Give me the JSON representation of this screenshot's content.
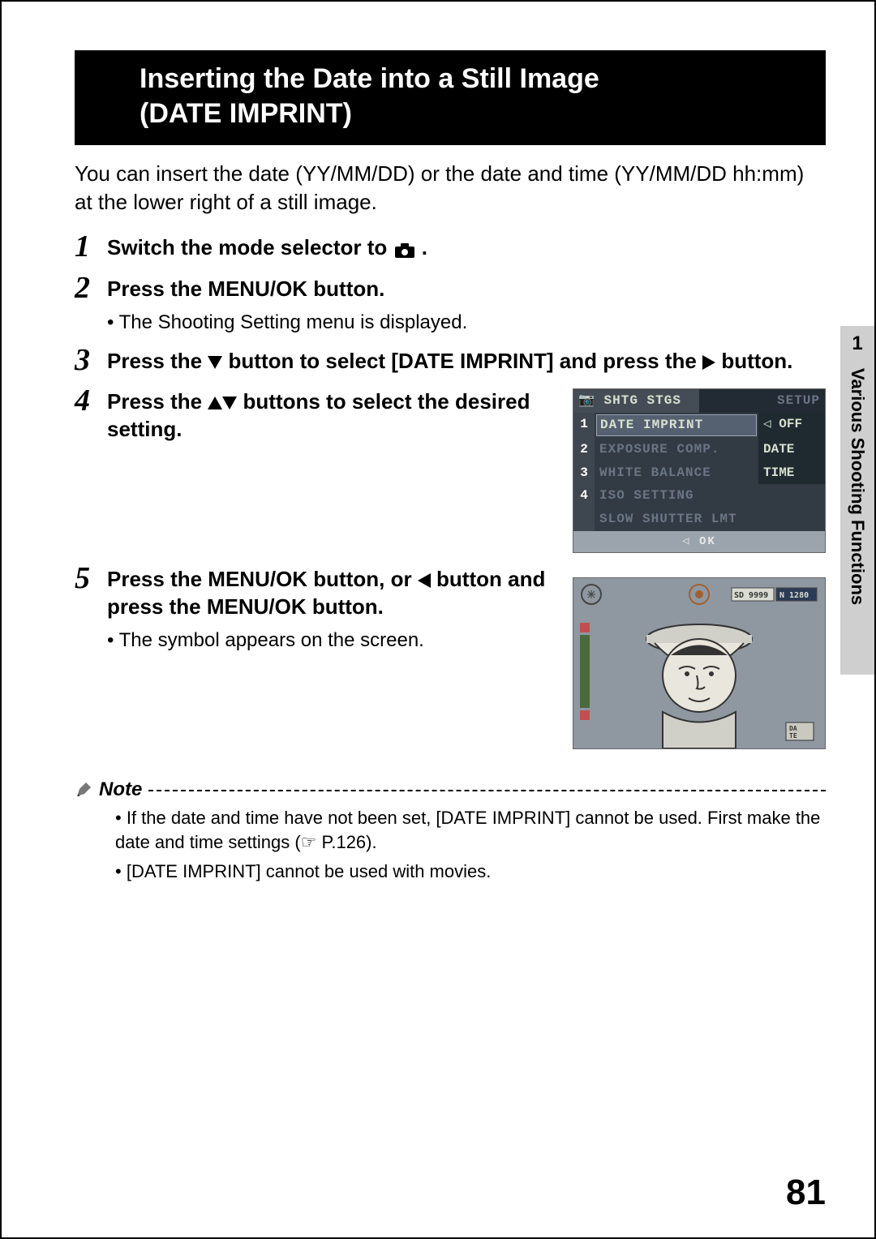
{
  "title_line1": "Inserting the Date into a Still Image",
  "title_line2": "(DATE IMPRINT)",
  "intro": "You can insert the date (YY/MM/DD) or the date and time (YY/MM/DD hh:mm) at the lower right of a still image.",
  "steps": {
    "s1": {
      "num": "1",
      "text_a": "Switch the mode selector to ",
      "text_b": "."
    },
    "s2": {
      "num": "2",
      "text": "Press the MENU/OK button.",
      "sub": "The Shooting Setting menu is displayed."
    },
    "s3": {
      "num": "3",
      "text_a": "Press the ",
      "text_b": " button to select [DATE IMPRINT] and press the ",
      "text_c": " button."
    },
    "s4": {
      "num": "4",
      "text_a": "Press the ",
      "text_b": " buttons to select the desired setting."
    },
    "s5": {
      "num": "5",
      "text_a": "Press the MENU/OK button, or ",
      "text_b": " button and press the MENU/OK button.",
      "sub": "The symbol appears on the screen."
    }
  },
  "lcd": {
    "tab_active": "SHTG STGS",
    "tab_inactive": "SETUP",
    "rows": [
      {
        "n": "1",
        "label": "DATE IMPRINT",
        "val": "OFF",
        "highlight": true
      },
      {
        "n": "2",
        "label": "EXPOSURE COMP.",
        "val": "DATE"
      },
      {
        "n": "3",
        "label": "WHITE BALANCE",
        "val": "TIME"
      },
      {
        "n": "4",
        "label": "ISO SETTING",
        "val": ""
      },
      {
        "n": "",
        "label": "SLOW SHUTTER LMT",
        "val": ""
      }
    ],
    "footer": "◁ OK"
  },
  "screen2_overlay": {
    "sd": "SD 9999",
    "n": "N 1280",
    "badge": "DATE"
  },
  "note": {
    "label": "Note",
    "items": [
      "If the date and time have not been set, [DATE IMPRINT] cannot be used. First make the date and time settings (☞ P.126).",
      "[DATE IMPRINT] cannot be used with movies."
    ]
  },
  "side": {
    "num": "1",
    "label": "Various Shooting Functions"
  },
  "page_number": "81"
}
